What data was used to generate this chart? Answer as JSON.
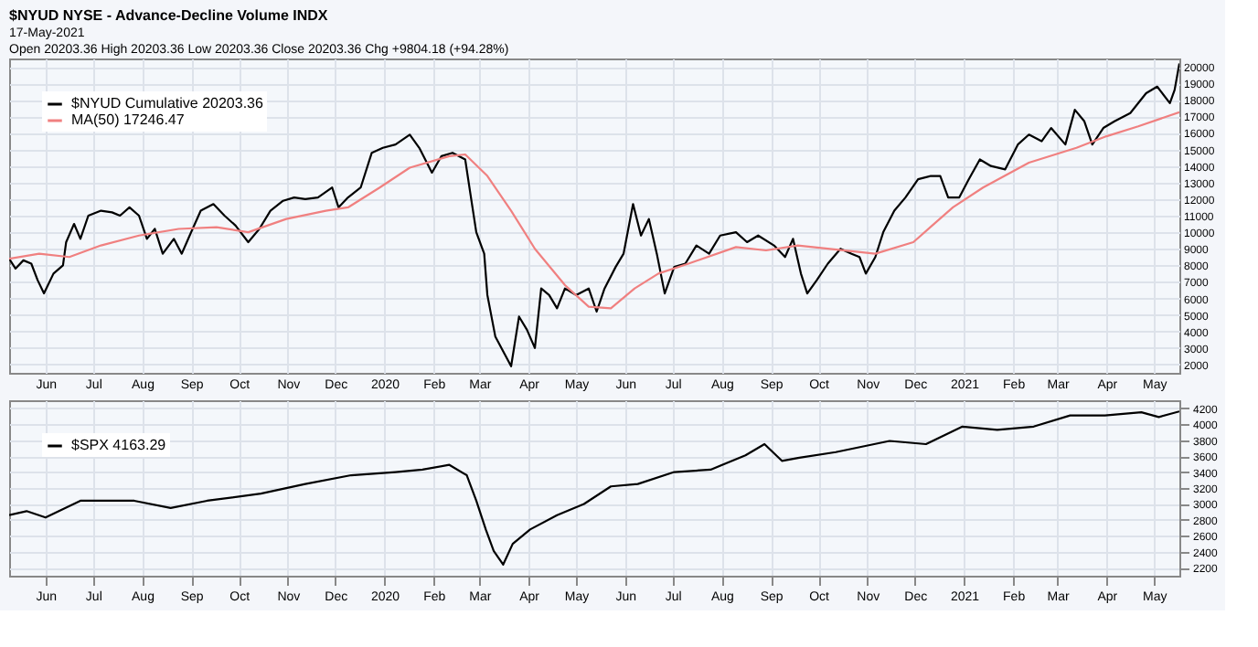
{
  "chart_data": [
    {
      "type": "line",
      "title": "$NYUD NYSE - Advance-Decline Volume INDX",
      "subtitle": "17-May-2021",
      "annotations": [
        "Open 20203.36 High 20203.36 Low 20203.36 Close 20203.36 Chg +9804.18 (+94.28%)"
      ],
      "xlim": [
        "2019-05-09",
        "2021-05-17"
      ],
      "xticks": [
        {
          "value": "2019-06-01",
          "label": "Jun"
        },
        {
          "value": "2019-07-01",
          "label": "Jul"
        },
        {
          "value": "2019-08-01",
          "label": "Aug"
        },
        {
          "value": "2019-09-01",
          "label": "Sep"
        },
        {
          "value": "2019-10-01",
          "label": "Oct"
        },
        {
          "value": "2019-11-01",
          "label": "Nov"
        },
        {
          "value": "2019-12-01",
          "label": "Dec"
        },
        {
          "value": "2020-01-01",
          "label": "2020"
        },
        {
          "value": "2020-02-01",
          "label": "Feb"
        },
        {
          "value": "2020-03-01",
          "label": "Mar"
        },
        {
          "value": "2020-04-01",
          "label": "Apr"
        },
        {
          "value": "2020-05-01",
          "label": "May"
        },
        {
          "value": "2020-06-01",
          "label": "Jun"
        },
        {
          "value": "2020-07-01",
          "label": "Jul"
        },
        {
          "value": "2020-08-01",
          "label": "Aug"
        },
        {
          "value": "2020-09-01",
          "label": "Sep"
        },
        {
          "value": "2020-10-01",
          "label": "Oct"
        },
        {
          "value": "2020-11-01",
          "label": "Nov"
        },
        {
          "value": "2020-12-01",
          "label": "Dec"
        },
        {
          "value": "2021-01-01",
          "label": "2021"
        },
        {
          "value": "2021-02-01",
          "label": "Feb"
        },
        {
          "value": "2021-03-01",
          "label": "Mar"
        },
        {
          "value": "2021-04-01",
          "label": "Apr"
        },
        {
          "value": "2021-05-01",
          "label": "May"
        }
      ],
      "ylim": [
        1500,
        20500
      ],
      "yticks": [
        2000,
        3000,
        4000,
        5000,
        6000,
        7000,
        8000,
        9000,
        10000,
        11000,
        12000,
        13000,
        14000,
        15000,
        16000,
        17000,
        18000,
        19000,
        20000
      ],
      "grid": true,
      "legend": "top left",
      "series": [
        {
          "name": "$NYUD Cumulative 20203.36",
          "color": "#000000",
          "x": [
            "2019-05-09",
            "2019-05-13",
            "2019-05-18",
            "2019-05-23",
            "2019-05-27",
            "2019-05-31",
            "2019-06-06",
            "2019-06-12",
            "2019-06-14",
            "2019-06-19",
            "2019-06-23",
            "2019-06-28",
            "2019-07-06",
            "2019-07-13",
            "2019-07-18",
            "2019-07-24",
            "2019-07-30",
            "2019-08-04",
            "2019-08-09",
            "2019-08-14",
            "2019-08-21",
            "2019-08-26",
            "2019-08-31",
            "2019-09-07",
            "2019-09-15",
            "2019-09-22",
            "2019-09-29",
            "2019-10-07",
            "2019-10-14",
            "2019-10-21",
            "2019-10-29",
            "2019-11-05",
            "2019-11-12",
            "2019-11-20",
            "2019-11-29",
            "2019-12-03",
            "2019-12-09",
            "2019-12-17",
            "2019-12-24",
            "2019-12-31",
            "2020-01-08",
            "2020-01-17",
            "2020-01-23",
            "2020-01-31",
            "2020-02-06",
            "2020-02-13",
            "2020-02-21",
            "2020-02-24",
            "2020-02-28",
            "2020-03-04",
            "2020-03-06",
            "2020-03-11",
            "2020-03-16",
            "2020-03-21",
            "2020-03-26",
            "2020-03-31",
            "2020-04-05",
            "2020-04-09",
            "2020-04-14",
            "2020-04-19",
            "2020-04-24",
            "2020-05-01",
            "2020-05-09",
            "2020-05-14",
            "2020-05-19",
            "2020-05-26",
            "2020-05-31",
            "2020-06-06",
            "2020-06-11",
            "2020-06-16",
            "2020-06-21",
            "2020-06-26",
            "2020-07-02",
            "2020-07-09",
            "2020-07-16",
            "2020-07-24",
            "2020-07-31",
            "2020-08-10",
            "2020-08-17",
            "2020-08-24",
            "2020-09-03",
            "2020-09-10",
            "2020-09-15",
            "2020-09-20",
            "2020-09-24",
            "2020-09-30",
            "2020-10-07",
            "2020-10-15",
            "2020-10-22",
            "2020-10-27",
            "2020-10-31",
            "2020-11-06",
            "2020-11-11",
            "2020-11-18",
            "2020-11-25",
            "2020-12-03",
            "2020-12-11",
            "2020-12-17",
            "2020-12-22",
            "2020-12-29",
            "2021-01-04",
            "2021-01-11",
            "2021-01-18",
            "2021-01-27",
            "2021-02-04",
            "2021-02-11",
            "2021-02-19",
            "2021-02-25",
            "2021-03-06",
            "2021-03-12",
            "2021-03-18",
            "2021-03-23",
            "2021-03-30",
            "2021-04-06",
            "2021-04-16",
            "2021-04-26",
            "2021-05-03",
            "2021-05-11",
            "2021-05-14",
            "2021-05-17"
          ],
          "values": [
            8400,
            7800,
            8300,
            8100,
            7100,
            6300,
            7500,
            8000,
            9400,
            10500,
            9600,
            11000,
            11300,
            11200,
            11000,
            11500,
            11000,
            9600,
            10200,
            8700,
            9600,
            8700,
            9800,
            11300,
            11700,
            11000,
            10400,
            9400,
            10200,
            11300,
            11900,
            12100,
            12000,
            12100,
            12700,
            11500,
            12100,
            12700,
            14800,
            15100,
            15300,
            15900,
            15100,
            13600,
            14600,
            14800,
            14400,
            12500,
            10000,
            8700,
            6200,
            3700,
            2800,
            1900,
            4900,
            4100,
            3000,
            6600,
            6200,
            5400,
            6600,
            6200,
            6600,
            5200,
            6600,
            7900,
            8700,
            11700,
            9800,
            10800,
            8700,
            6300,
            7900,
            8100,
            9200,
            8700,
            9800,
            10000,
            9400,
            9800,
            9200,
            8500,
            9600,
            7500,
            6300,
            7100,
            8100,
            9000,
            8700,
            8500,
            7500,
            8500,
            10000,
            11300,
            12100,
            13200,
            13400,
            13400,
            12100,
            12100,
            13200,
            14400,
            14000,
            13800,
            15300,
            15900,
            15500,
            16300,
            15300,
            17400,
            16700,
            15300,
            16300,
            16700,
            17200,
            18400,
            18800,
            17800,
            18600,
            20200
          ]
        },
        {
          "name": "MA(50) 17246.47",
          "color": "#f08080",
          "x": [
            "2019-05-09",
            "2019-05-28",
            "2019-06-16",
            "2019-07-06",
            "2019-07-30",
            "2019-08-24",
            "2019-09-17",
            "2019-10-07",
            "2019-10-31",
            "2019-11-25",
            "2019-12-09",
            "2019-12-29",
            "2020-01-17",
            "2020-02-11",
            "2020-02-21",
            "2020-03-06",
            "2020-03-21",
            "2020-04-05",
            "2020-04-24",
            "2020-05-09",
            "2020-05-23",
            "2020-06-07",
            "2020-06-22",
            "2020-07-11",
            "2020-08-10",
            "2020-08-29",
            "2020-09-18",
            "2020-10-07",
            "2020-11-06",
            "2020-11-30",
            "2020-12-25",
            "2021-01-13",
            "2021-02-11",
            "2021-03-13",
            "2021-04-01",
            "2021-04-21",
            "2021-05-17"
          ],
          "values": [
            8400,
            8700,
            8500,
            9200,
            9800,
            10200,
            10300,
            10000,
            10800,
            11300,
            11500,
            12700,
            13900,
            14600,
            14700,
            13400,
            11300,
            9000,
            6800,
            5500,
            5400,
            6600,
            7500,
            8100,
            9100,
            8900,
            9200,
            9000,
            8700,
            9400,
            11500,
            12700,
            14200,
            15100,
            15800,
            16400,
            17250
          ]
        }
      ]
    },
    {
      "type": "line",
      "xlim": [
        "2019-05-09",
        "2021-05-17"
      ],
      "xticks": [
        {
          "value": "2019-06-01",
          "label": "Jun"
        },
        {
          "value": "2019-07-01",
          "label": "Jul"
        },
        {
          "value": "2019-08-01",
          "label": "Aug"
        },
        {
          "value": "2019-09-01",
          "label": "Sep"
        },
        {
          "value": "2019-10-01",
          "label": "Oct"
        },
        {
          "value": "2019-11-01",
          "label": "Nov"
        },
        {
          "value": "2019-12-01",
          "label": "Dec"
        },
        {
          "value": "2020-01-01",
          "label": "2020"
        },
        {
          "value": "2020-02-01",
          "label": "Feb"
        },
        {
          "value": "2020-03-01",
          "label": "Mar"
        },
        {
          "value": "2020-04-01",
          "label": "Apr"
        },
        {
          "value": "2020-05-01",
          "label": "May"
        },
        {
          "value": "2020-06-01",
          "label": "Jun"
        },
        {
          "value": "2020-07-01",
          "label": "Jul"
        },
        {
          "value": "2020-08-01",
          "label": "Aug"
        },
        {
          "value": "2020-09-01",
          "label": "Sep"
        },
        {
          "value": "2020-10-01",
          "label": "Oct"
        },
        {
          "value": "2020-11-01",
          "label": "Nov"
        },
        {
          "value": "2020-12-01",
          "label": "Dec"
        },
        {
          "value": "2021-01-01",
          "label": "2021"
        },
        {
          "value": "2021-02-01",
          "label": "Feb"
        },
        {
          "value": "2021-03-01",
          "label": "Mar"
        },
        {
          "value": "2021-04-01",
          "label": "Apr"
        },
        {
          "value": "2021-05-01",
          "label": "May"
        }
      ],
      "ylim": [
        2100,
        4300
      ],
      "yticks": [
        2200,
        2400,
        2600,
        2800,
        3000,
        3200,
        3400,
        3600,
        3800,
        4000,
        4200
      ],
      "grid": true,
      "legend": "top left",
      "series": [
        {
          "name": "$SPX 4163.29",
          "color": "#000000",
          "x": [
            "2019-05-09",
            "2019-05-20",
            "2019-06-01",
            "2019-06-23",
            "2019-07-27",
            "2019-08-19",
            "2019-09-11",
            "2019-10-15",
            "2019-11-12",
            "2019-12-11",
            "2020-01-08",
            "2020-01-25",
            "2020-02-11",
            "2020-02-22",
            "2020-02-28",
            "2020-03-05",
            "2020-03-10",
            "2020-03-16",
            "2020-03-22",
            "2020-04-02",
            "2020-04-19",
            "2020-05-06",
            "2020-05-23",
            "2020-06-09",
            "2020-07-02",
            "2020-07-25",
            "2020-08-16",
            "2020-08-28",
            "2020-09-08",
            "2020-09-19",
            "2020-10-12",
            "2020-11-15",
            "2020-12-08",
            "2020-12-31",
            "2021-01-22",
            "2021-02-14",
            "2021-03-09",
            "2021-03-31",
            "2021-04-23",
            "2021-05-04",
            "2021-05-17"
          ],
          "values": [
            2860,
            2910,
            2830,
            3040,
            3040,
            2950,
            3040,
            3130,
            3250,
            3360,
            3400,
            3430,
            3490,
            3360,
            3040,
            2680,
            2410,
            2240,
            2500,
            2680,
            2860,
            3000,
            3220,
            3250,
            3400,
            3430,
            3610,
            3750,
            3540,
            3580,
            3650,
            3790,
            3750,
            3970,
            3930,
            3970,
            4110,
            4110,
            4150,
            4090,
            4160
          ]
        }
      ]
    }
  ]
}
